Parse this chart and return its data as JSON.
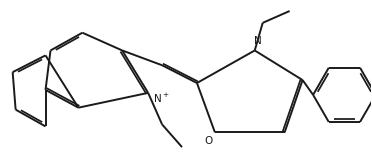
{
  "bg_color": "#ffffff",
  "line_color": "#1a1a1a",
  "line_width": 1.4,
  "figsize": [
    3.72,
    1.67
  ],
  "dpi": 100
}
